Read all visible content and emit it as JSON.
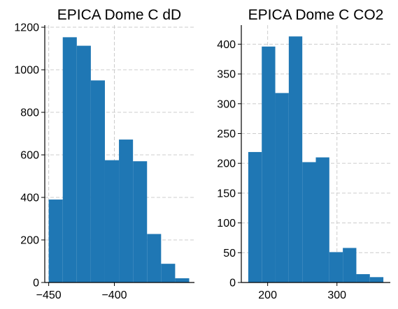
{
  "colors": {
    "bar": "#1f77b4",
    "grid": "#cccccc",
    "axis": "#000000"
  },
  "chart_data": [
    {
      "type": "bar",
      "title": "EPICA Dome C dD",
      "xlabel": "",
      "ylabel": "",
      "grid": true,
      "bin_edges": [
        -450.0,
        -439.3,
        -428.6,
        -417.9,
        -407.2,
        -396.5,
        -385.8,
        -375.1,
        -364.4,
        -353.7,
        -343.0
      ],
      "values": [
        390,
        1153,
        1113,
        950,
        575,
        672,
        570,
        228,
        88,
        20
      ],
      "xlim": [
        -453,
        -339
      ],
      "ylim": [
        0,
        1210
      ],
      "xticks": [
        -450,
        -400
      ],
      "xtick_labels": [
        "−450",
        "−400"
      ],
      "yticks": [
        0,
        200,
        400,
        600,
        800,
        1000,
        1200
      ],
      "ytick_labels": [
        "0",
        "200",
        "400",
        "600",
        "800",
        "1000",
        "1200"
      ]
    },
    {
      "type": "bar",
      "title": "EPICA Dome C CO2",
      "xlabel": "",
      "ylabel": "",
      "grid": true,
      "bin_edges": [
        172.0,
        191.5,
        211.0,
        230.5,
        250.0,
        269.5,
        289.0,
        308.5,
        328.0,
        347.5,
        367.0
      ],
      "values": [
        219,
        396,
        318,
        413,
        202,
        210,
        51,
        58,
        14,
        9
      ],
      "xlim": [
        162,
        377
      ],
      "ylim": [
        0,
        432
      ],
      "xticks": [
        200,
        300
      ],
      "xtick_labels": [
        "200",
        "300"
      ],
      "yticks": [
        0,
        50,
        100,
        150,
        200,
        250,
        300,
        350,
        400
      ],
      "ytick_labels": [
        "0",
        "50",
        "100",
        "150",
        "200",
        "250",
        "300",
        "350",
        "400"
      ]
    }
  ]
}
